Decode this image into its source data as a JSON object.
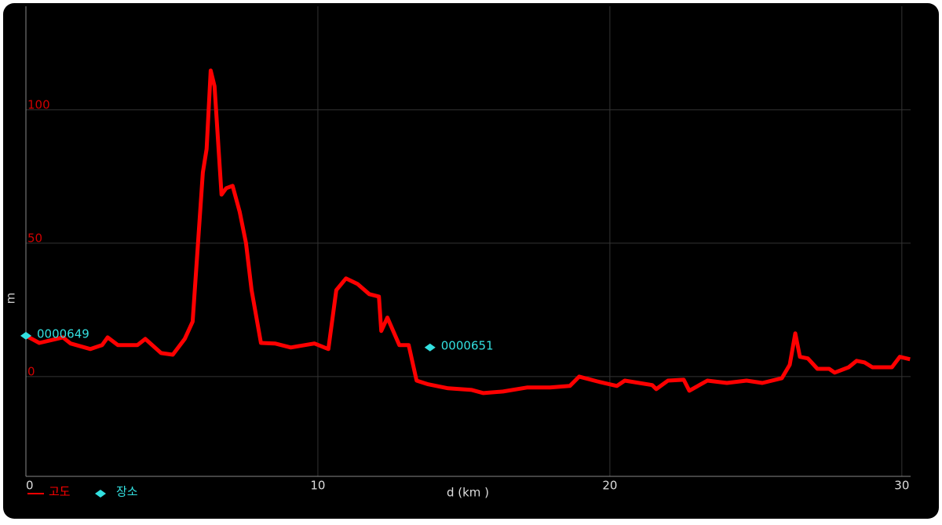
{
  "chart_data": {
    "type": "line",
    "x_label": "d (km )",
    "y_label": "m",
    "xlim": [
      0,
      30.3
    ],
    "ylim": [
      -37.4,
      138.8
    ],
    "xticks": [
      0,
      10,
      20,
      30
    ],
    "yticks": [
      0,
      50,
      100
    ],
    "grid": true,
    "series": [
      {
        "name": "고도",
        "color": "#ff0000",
        "x": [
          0,
          0.46,
          1.27,
          1.53,
          2.21,
          2.61,
          2.8,
          3.15,
          3.82,
          4.09,
          4.63,
          5.03,
          5.44,
          5.71,
          6.06,
          6.19,
          6.33,
          6.46,
          6.7,
          6.86,
          7.08,
          7.32,
          7.54,
          7.73,
          8.05,
          8.53,
          9.07,
          9.88,
          10.36,
          10.63,
          10.96,
          11.36,
          11.76,
          12.09,
          12.17,
          12.38,
          12.79,
          13.11,
          13.38,
          13.78,
          14.46,
          15.27,
          15.67,
          16.34,
          17.16,
          17.95,
          18.63,
          18.95,
          19.57,
          20.24,
          20.51,
          21.45,
          21.59,
          21.99,
          22.53,
          22.72,
          23.34,
          24.01,
          24.68,
          25.22,
          25.89,
          26.16,
          26.35,
          26.51,
          26.78,
          27.11,
          27.51,
          27.7,
          28.18,
          28.45,
          28.72,
          28.99,
          29.66,
          29.93,
          30.28
        ],
        "values": [
          15.3,
          12.6,
          14.7,
          12.4,
          10.3,
          11.8,
          14.7,
          11.8,
          11.8,
          14.1,
          8.8,
          8.2,
          14.1,
          20.6,
          76.5,
          85.3,
          114.7,
          108.8,
          68.2,
          70.6,
          71.5,
          61.8,
          50,
          32.4,
          12.6,
          12.4,
          10.9,
          12.4,
          10.3,
          32.4,
          36.8,
          34.7,
          30.9,
          30,
          17.1,
          22.1,
          11.8,
          11.8,
          -1.5,
          -2.9,
          -4.4,
          -5,
          -6.2,
          -5.6,
          -4.1,
          -4.1,
          -3.5,
          0,
          -1.8,
          -3.5,
          -1.5,
          -3.2,
          -4.7,
          -1.5,
          -1.2,
          -5.3,
          -1.5,
          -2.4,
          -1.5,
          -2.4,
          -0.6,
          4.4,
          16.2,
          7.4,
          6.8,
          2.9,
          2.9,
          1.5,
          3.5,
          5.9,
          5.3,
          3.5,
          3.5,
          7.4,
          6.5
        ]
      }
    ],
    "markers": [
      {
        "name": "장소",
        "color": "#33e0e0",
        "points": [
          {
            "label": "0000649",
            "x": 0,
            "y": 15.3
          },
          {
            "label": "0000651",
            "x": 13.84,
            "y": 10.9
          }
        ]
      }
    ]
  }
}
